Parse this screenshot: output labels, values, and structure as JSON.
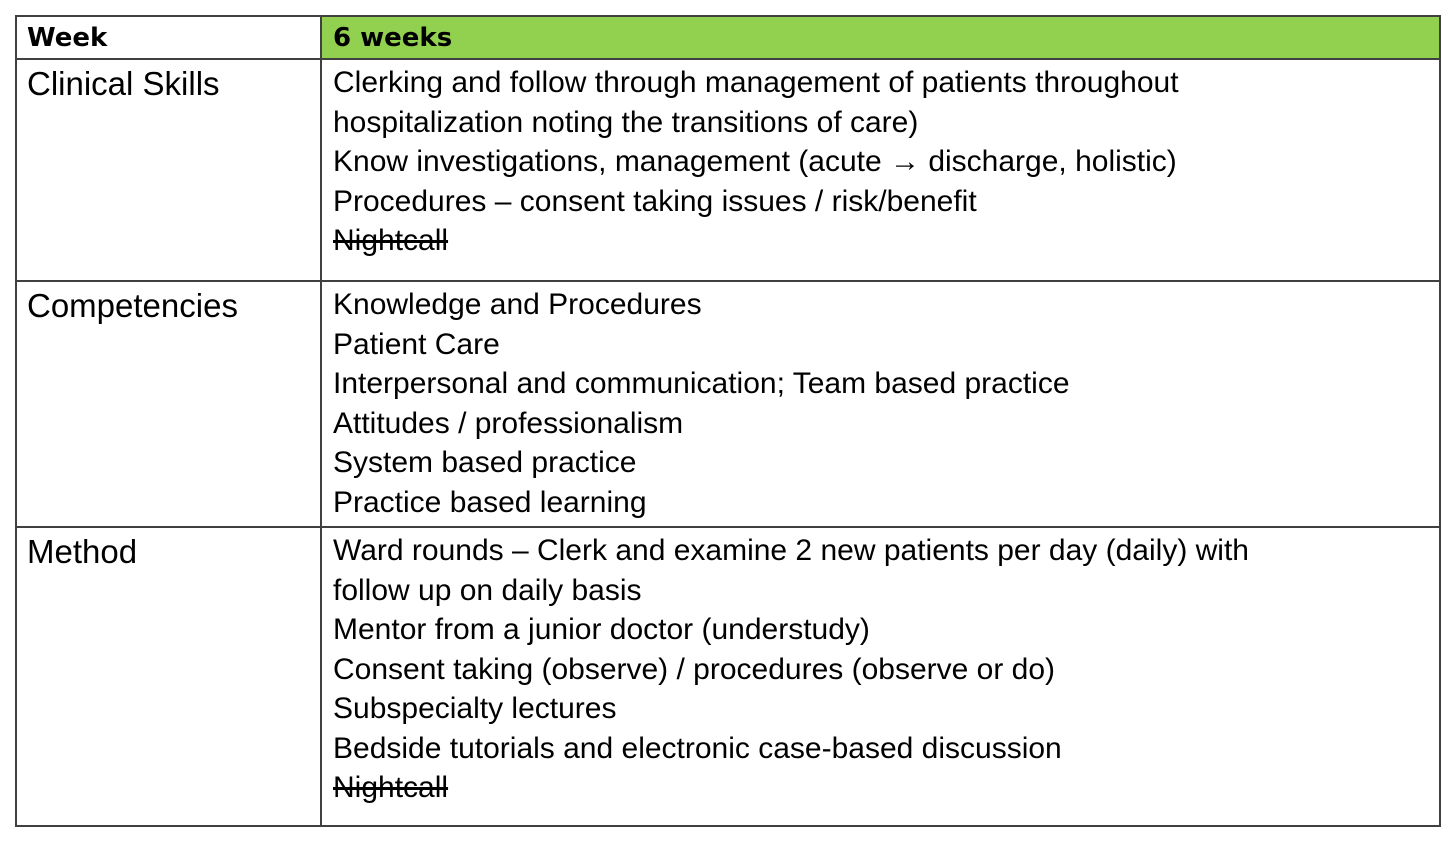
{
  "header": {
    "label": "Week",
    "value": "6 weeks",
    "accent_color": "#92d050"
  },
  "clinical_skills": {
    "label": "Clinical Skills",
    "lines": [
      "Clerking and follow through management of patients throughout",
      "hospitalization noting the transitions of care)",
      "Know investigations, management (acute",
      "Procedures – consent taking issues / risk/benefit",
      "Nightcall"
    ],
    "line3_arrow": "→",
    "line3_tail": " discharge, holistic)"
  },
  "competencies": {
    "label": "Competencies",
    "lines": [
      "Knowledge and Procedures",
      "Patient Care",
      "Interpersonal and communication; Team based practice",
      "Attitudes / professionalism",
      "System based practice",
      "Practice based learning"
    ]
  },
  "method": {
    "label": "Method",
    "lines": [
      "Ward rounds – Clerk and examine 2 new patients per day (daily) with",
      "follow up on daily basis",
      "Mentor from a junior doctor (understudy)",
      "Consent taking (observe) / procedures (observe or do)",
      "Subspecialty lectures",
      "Bedside tutorials and electronic case-based discussion",
      "Nightcall"
    ]
  }
}
